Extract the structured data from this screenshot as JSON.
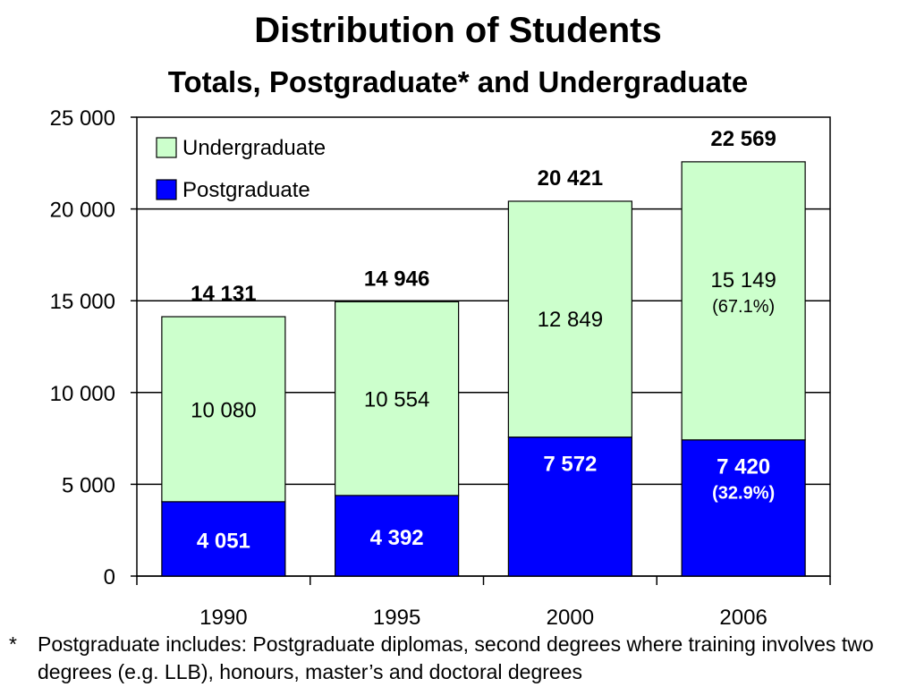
{
  "chart_data": {
    "type": "bar",
    "stacked": true,
    "title": "Distribution of Students",
    "subtitle": "Totals, Postgraduate* and Undergraduate",
    "categories": [
      "1990",
      "1995",
      "2000",
      "2006"
    ],
    "series": [
      {
        "name": "Postgraduate",
        "color": "#0000ff",
        "values": [
          4051,
          4392,
          7572,
          7420
        ],
        "labels": [
          "4 051",
          "4 392",
          "7 572",
          "7 420"
        ],
        "extra_labels": [
          "",
          "",
          "",
          "(32.9%)"
        ]
      },
      {
        "name": "Undergraduate",
        "color": "#ccffcc",
        "values": [
          10080,
          10554,
          12849,
          15149
        ],
        "labels": [
          "10 080",
          "10 554",
          "12 849",
          "15 149"
        ],
        "extra_labels": [
          "",
          "",
          "",
          "(67.1%)"
        ]
      }
    ],
    "totals": [
      14131,
      14946,
      20421,
      22569
    ],
    "total_labels": [
      "14 131",
      "14 946",
      "20 421",
      "22 569"
    ],
    "ylim": [
      0,
      25000
    ],
    "yticks": [
      0,
      5000,
      10000,
      15000,
      20000,
      25000
    ],
    "ytick_labels": [
      "0",
      "5 000",
      "10 000",
      "15 000",
      "20 000",
      "25 000"
    ],
    "grid": true,
    "legend_position": "top-left"
  },
  "footnote": {
    "marker": "*",
    "text": "Postgraduate includes: Postgraduate diplomas, second degrees where training involves two degrees (e.g. LLB), honours, master’s and doctoral degrees"
  }
}
